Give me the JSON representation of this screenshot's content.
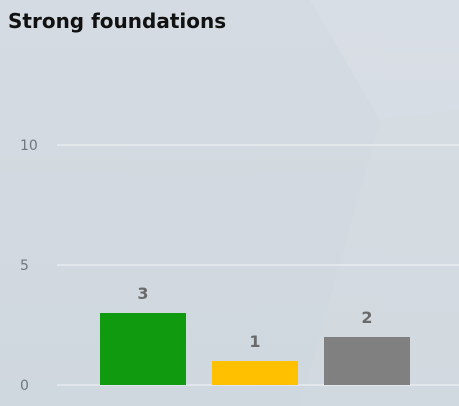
{
  "chart_data": {
    "type": "bar",
    "title": "Strong foundations",
    "categories": [
      "",
      "",
      ""
    ],
    "values": [
      3,
      1,
      2
    ],
    "data_labels": [
      "3",
      "1",
      "2"
    ],
    "colors": [
      "#0f9a0f",
      "#ffc000",
      "#808080"
    ],
    "ylim": [
      0,
      10
    ],
    "yticks": [
      {
        "value": 0,
        "label": "0"
      },
      {
        "value": 5,
        "label": "5"
      },
      {
        "value": 10,
        "label": "10"
      }
    ],
    "grid": true,
    "legend": "none",
    "xlabel": "",
    "ylabel": ""
  }
}
